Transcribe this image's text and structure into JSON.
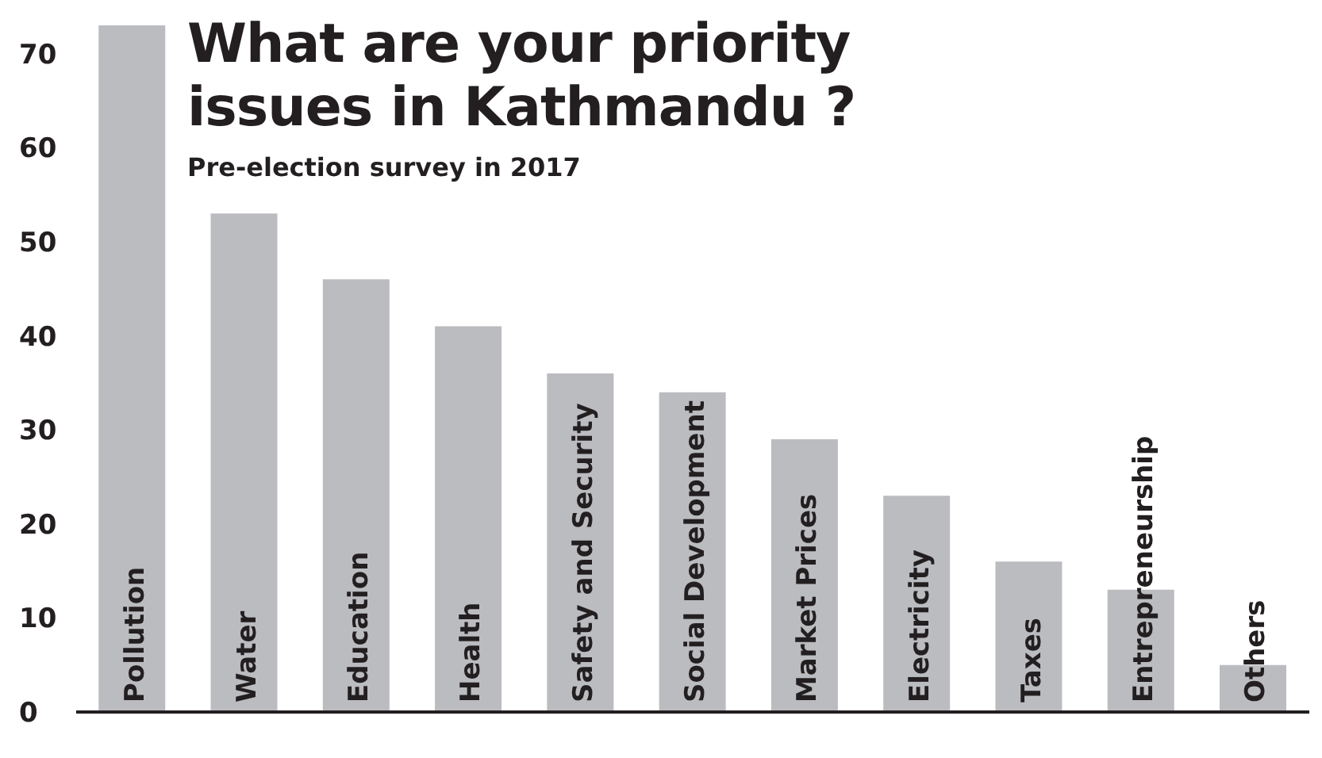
{
  "chart_data": {
    "type": "bar",
    "title": "What are your priority issues in Kathmandu ?",
    "subtitle": "Pre-election survey in 2017",
    "categories": [
      "Pollution",
      "Water",
      "Education",
      "Health",
      "Safety and Security",
      "Social Development",
      "Market Prices",
      "Electricity",
      "Taxes",
      "Entrepreneurship",
      "Others"
    ],
    "values": [
      73,
      53,
      46,
      41,
      36,
      34,
      29,
      23,
      16,
      13,
      5
    ],
    "color": "#bbbcc0",
    "ylim": [
      0,
      73
    ],
    "yticks": [
      0,
      10,
      20,
      30,
      40,
      50,
      60,
      70
    ]
  }
}
